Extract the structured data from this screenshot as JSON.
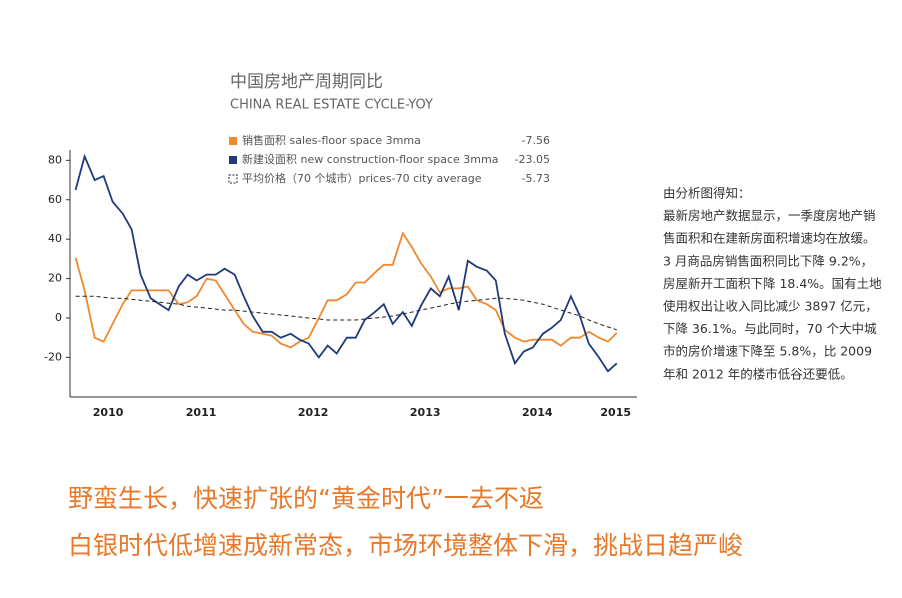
{
  "chart_data": {
    "type": "line",
    "title": "中国房地产周期同比",
    "subtitle": "CHINA REAL ESTATE CYCLE-YOY",
    "x": [
      2010.38,
      2010.46,
      2010.55,
      2010.63,
      2010.71,
      2010.8,
      2010.88,
      2010.96,
      2011.05,
      2011.13,
      2011.21,
      2011.3,
      2011.38,
      2011.46,
      2011.55,
      2011.63,
      2011.71,
      2011.8,
      2011.88,
      2011.96,
      2012.05,
      2012.13,
      2012.21,
      2012.3,
      2012.38,
      2012.46,
      2012.55,
      2012.63,
      2012.71,
      2012.8,
      2012.88,
      2012.96,
      2013.05,
      2013.13,
      2013.21,
      2013.3,
      2013.38,
      2013.46,
      2013.55,
      2013.63,
      2013.71,
      2013.8,
      2013.88,
      2013.96,
      2014.05,
      2014.13,
      2014.21,
      2014.3,
      2014.38,
      2014.46,
      2014.55,
      2014.63,
      2014.71,
      2014.8,
      2014.88,
      2014.96,
      2015.05,
      2015.13,
      2015.21
    ],
    "series": [
      {
        "name": "销售面积 sales-floor space 3mma",
        "latest": -7.56,
        "color": "#f0892d",
        "dash": false,
        "values": [
          30.5,
          14,
          -10,
          -12,
          -3,
          7,
          14,
          14,
          14,
          14,
          14,
          7,
          8,
          11,
          20,
          19,
          12,
          4,
          -3,
          -7,
          -8,
          -9,
          -13,
          -15,
          -12,
          -10,
          0,
          9,
          9,
          12,
          18,
          18,
          23,
          27,
          27,
          43,
          36,
          28,
          21,
          13,
          15,
          15,
          16,
          9,
          7,
          4,
          -6,
          -10,
          -12,
          -11,
          -11,
          -11,
          -14,
          -10,
          -10,
          -7,
          -10,
          -12,
          -7.56
        ]
      },
      {
        "name": "新建设面积 new construction-floor space 3mma",
        "latest": -23.05,
        "color": "#1f3a7a",
        "dash": false,
        "values": [
          65,
          82,
          70,
          72,
          59,
          53,
          45,
          22,
          10,
          7,
          4,
          16,
          22,
          19,
          22,
          22,
          25,
          22,
          11,
          1,
          -7,
          -7,
          -10,
          -8,
          -11,
          -13,
          -20,
          -14,
          -18,
          -10,
          -10,
          -1,
          3,
          7,
          -3,
          3,
          -4,
          6,
          15,
          11,
          21,
          4,
          29,
          26,
          24,
          19,
          -8,
          -23,
          -17,
          -15,
          -8,
          -5,
          -1,
          11,
          1,
          -13,
          -20,
          -27,
          -23
        ]
      },
      {
        "name": "平均价格（70 个城市）prices-70 city average",
        "latest": -5.73,
        "color": "#222222",
        "dash": true,
        "values": [
          11,
          11,
          11,
          10.5,
          10,
          10,
          9.5,
          9,
          8.5,
          8,
          7.5,
          7,
          6,
          5.5,
          5,
          4.5,
          4,
          4,
          3.5,
          3,
          2.5,
          2,
          1.5,
          1,
          0.5,
          0,
          -0.5,
          -1,
          -1,
          -1,
          -1,
          -0.5,
          0,
          0.5,
          1,
          2,
          3,
          4,
          5,
          6,
          7,
          8,
          8.5,
          9,
          9.5,
          10,
          10,
          9.5,
          9,
          8,
          7,
          5.5,
          4,
          2.5,
          1,
          -1,
          -3,
          -4.5,
          -6
        ]
      }
    ],
    "xlim": [
      2010.33,
      2015.39
    ],
    "xticks": [
      {
        "value": 2010.67,
        "label": "2010"
      },
      {
        "value": 2011.5,
        "label": "2011"
      },
      {
        "value": 2012.5,
        "label": "2012"
      },
      {
        "value": 2013.5,
        "label": "2013"
      },
      {
        "value": 2014.5,
        "label": "2014"
      },
      {
        "value": 2015.2,
        "label": "2015"
      }
    ],
    "ylim": [
      -40,
      85
    ],
    "yticks": [
      -20,
      0,
      20,
      40,
      60,
      80
    ],
    "grid": false
  },
  "notes": [
    "由分析图得知：",
    "最新房地产数据显示，一季度房地产销",
    "售面积和在建新房面积增速均在放缓。",
    "3 月商品房销售面积同比下降 9.2%，",
    "房屋新开工面积下降 18.4%。国有土地",
    "使用权出让收入同比减少 3897 亿元，",
    "下降 36.1%。与此同时，70 个大中城",
    "市的房价增速下降至 5.8%，比 2009",
    "年和 2012 年的楼市低谷还要低。"
  ],
  "headline": [
    "野蛮生长，快速扩张的“黄金时代”一去不返",
    "白银时代低增速成新常态，市场环境整体下滑，挑战日趋严峻"
  ]
}
